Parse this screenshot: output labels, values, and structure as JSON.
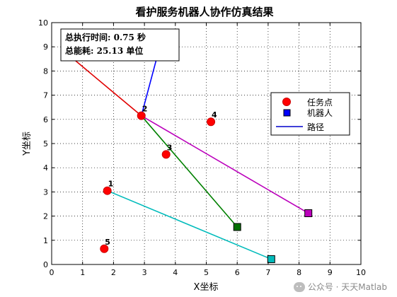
{
  "chart_data": {
    "type": "scatter",
    "title": "看护服务机器人协作仿真结果",
    "xlabel": "X坐标",
    "ylabel": "Y坐标",
    "xlim": [
      0,
      10
    ],
    "ylim": [
      0,
      10
    ],
    "xticks": [
      "0",
      "1",
      "2",
      "3",
      "4",
      "5",
      "6",
      "7",
      "8",
      "9",
      "10"
    ],
    "yticks": [
      "0",
      "1",
      "2",
      "3",
      "4",
      "5",
      "6",
      "7",
      "8",
      "9",
      "10"
    ],
    "grid": true,
    "legend_position": "right-upper",
    "legend": [
      {
        "label": "任务点",
        "marker": "circle",
        "color": "#ff0000"
      },
      {
        "label": "机器人",
        "marker": "square",
        "color": "#0000ff"
      },
      {
        "label": "路径",
        "marker": "line",
        "color": "#0000cc"
      }
    ],
    "summary_box": {
      "line1": "总执行时间: 0.75 秒",
      "line2": "总能耗: 25.13 单位"
    },
    "tasks": [
      {
        "label": "1",
        "x": 1.8,
        "y": 3.05
      },
      {
        "label": "2",
        "x": 2.9,
        "y": 6.15
      },
      {
        "label": "3",
        "x": 3.7,
        "y": 4.55
      },
      {
        "label": "4",
        "x": 5.15,
        "y": 5.9
      },
      {
        "label": "5",
        "x": 1.7,
        "y": 0.65
      }
    ],
    "robots": [
      {
        "x": 6.0,
        "y": 1.55,
        "color": "#007000"
      },
      {
        "x": 8.3,
        "y": 2.12,
        "color": "#bb00bb"
      },
      {
        "x": 7.1,
        "y": 0.22,
        "color": "#00bbbb"
      }
    ],
    "paths": [
      {
        "color": "#008000",
        "points": [
          [
            6.0,
            1.55
          ],
          [
            2.9,
            6.15
          ]
        ]
      },
      {
        "color": "#bb00bb",
        "points": [
          [
            8.3,
            2.12
          ],
          [
            2.9,
            6.15
          ]
        ]
      },
      {
        "color": "#00bbbb",
        "points": [
          [
            7.1,
            0.22
          ],
          [
            1.8,
            3.05
          ]
        ]
      },
      {
        "color": "#0000ff",
        "points": [
          [
            2.9,
            6.15
          ],
          [
            3.6,
            9.5
          ]
        ]
      },
      {
        "color": "#e00000",
        "points": [
          [
            2.9,
            6.15
          ],
          [
            0.7,
            8.5
          ]
        ]
      }
    ]
  },
  "watermark": {
    "text": "公众号 · 天天Matlab"
  }
}
